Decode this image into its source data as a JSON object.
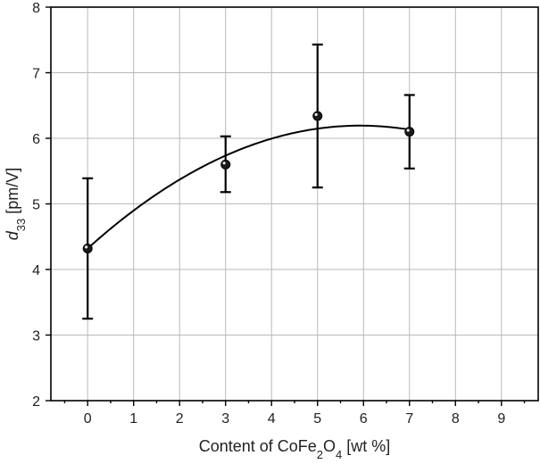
{
  "chart_data": {
    "type": "scatter",
    "title": "",
    "xlabel": {
      "main": "Content of CoFe",
      "sub1": "2",
      "mid": "O",
      "sub2": "4",
      "tail": " [wt %]"
    },
    "ylabel": {
      "italic": "d",
      "sub": "33",
      "tail": " [pm/V]"
    },
    "xlim": [
      -0.8,
      9.8
    ],
    "ylim": [
      2,
      8
    ],
    "xticks": [
      0,
      1,
      2,
      3,
      4,
      5,
      6,
      7,
      8,
      9
    ],
    "yticks": [
      2,
      3,
      4,
      5,
      6,
      7,
      8
    ],
    "grid": true,
    "series": [
      {
        "x": [
          0,
          3,
          5,
          7
        ],
        "y": [
          4.32,
          5.6,
          6.34,
          6.1
        ],
        "err_low": [
          3.25,
          5.18,
          5.25,
          5.54
        ],
        "err_high": [
          5.39,
          6.03,
          7.43,
          6.66
        ]
      }
    ],
    "fit_curve": {
      "type": "polynomial-2",
      "x_range": [
        0,
        7
      ],
      "coefficients": [
        4.32,
        0.632,
        -0.0533
      ]
    }
  },
  "colors": {
    "marker": "#1a1a1a",
    "line": "#000000",
    "grid": "#b9b9b9"
  }
}
